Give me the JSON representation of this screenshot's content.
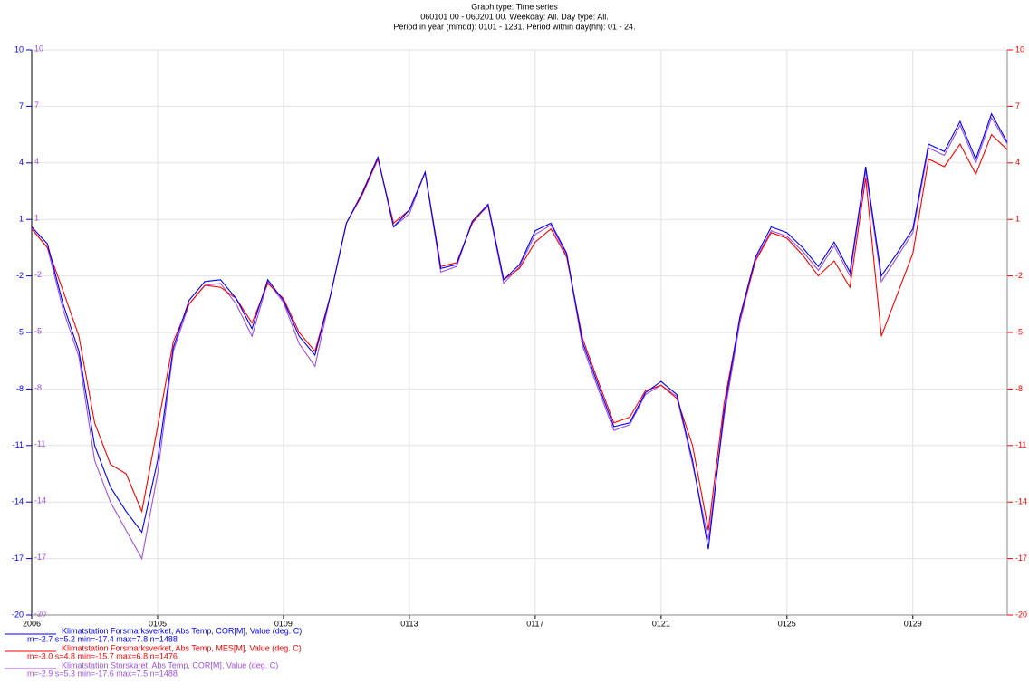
{
  "chart_data": {
    "type": "line",
    "title": "Graph type: Time series",
    "subtitle": "060101 00 - 060201 00. Weekday: All. Day type: All.",
    "subtitle2": "Period in year (mmdd): 0101 - 1231. Period within day(hh): 01 - 24.",
    "x": [
      0,
      0.5,
      1,
      1.5,
      2,
      2.5,
      3,
      3.5,
      4,
      4.5,
      5,
      5.5,
      6,
      6.5,
      7,
      7.5,
      8,
      8.5,
      9,
      9.5,
      10,
      10.5,
      11,
      11.5,
      12,
      12.5,
      13,
      13.5,
      14,
      14.5,
      15,
      15.5,
      16,
      16.5,
      17,
      17.5,
      18,
      18.5,
      19,
      19.5,
      20,
      20.5,
      21,
      21.5,
      22,
      22.5,
      23,
      23.5,
      24,
      24.5,
      25,
      25.5,
      26,
      26.5,
      27,
      27.5,
      28,
      28.5,
      29,
      29.5,
      30,
      30.5,
      31
    ],
    "xlim": [
      0,
      31
    ],
    "xticks": [
      {
        "value": 0,
        "label": "2006"
      },
      {
        "value": 4,
        "label": "0105"
      },
      {
        "value": 8,
        "label": "0109"
      },
      {
        "value": 12,
        "label": "0113"
      },
      {
        "value": 16,
        "label": "0117"
      },
      {
        "value": 20,
        "label": "0121"
      },
      {
        "value": 24,
        "label": "0125"
      },
      {
        "value": 28,
        "label": "0129"
      }
    ],
    "ylim": [
      -20,
      10
    ],
    "yticks": [
      10,
      7,
      4,
      1,
      -2,
      -5,
      -8,
      -11,
      -14,
      -17,
      -20
    ],
    "grid": true,
    "series": [
      {
        "name": "Klimatstation Forsmarksverket, Abs Temp, COR[M], Value (deg. C)",
        "stats": "m=-2.7 s=5.2 min=-17.4 max=7.8 n=1488",
        "color": "#0000ff",
        "values": [
          0.6,
          -0.3,
          -3.5,
          -6,
          -11,
          -13.2,
          -14.5,
          -15.6,
          -11.8,
          -5.8,
          -3.3,
          -2.3,
          -2.2,
          -3.2,
          -4.8,
          -2.2,
          -3.3,
          -5.2,
          -6.2,
          -3,
          0.8,
          2.4,
          4.3,
          0.6,
          1.5,
          3.5,
          -1.6,
          -1.4,
          0.9,
          1.8,
          -2.2,
          -1.4,
          0.4,
          0.8,
          -0.8,
          -5.5,
          -7.8,
          -10,
          -9.8,
          -8.2,
          -7.6,
          -8.3,
          -11.8,
          -16.5,
          -9.2,
          -4.2,
          -1,
          0.6,
          0.3,
          -0.5,
          -1.5,
          -0.2,
          -1.8,
          3.8,
          -2,
          -0.8,
          0.5,
          5,
          4.6,
          6.2,
          4.2,
          6.6,
          5.1
        ]
      },
      {
        "name": "Klimatstation Forsmarksverket, Abs Temp, MES[M], Value (deg. C)",
        "stats": "m=-3.0 s=4.8 min=-15.7 max=6.8 n=1476",
        "color": "#ff0000",
        "values": [
          0.5,
          -0.5,
          -2.8,
          -5.2,
          -9.8,
          -12,
          -12.5,
          -14.5,
          -10,
          -5.5,
          -3.5,
          -2.5,
          -2.6,
          -3.2,
          -4.5,
          -2.4,
          -3.2,
          -5,
          -6,
          -3,
          0.8,
          2.3,
          4.2,
          0.8,
          1.5,
          3.5,
          -1.5,
          -1.3,
          0.8,
          1.8,
          -2.2,
          -1.6,
          -0.2,
          0.5,
          -1,
          -5.3,
          -7.6,
          -9.8,
          -9.5,
          -8.1,
          -7.8,
          -8.5,
          -11,
          -15.5,
          -8.8,
          -4.3,
          -1.2,
          0.3,
          0,
          -0.9,
          -2,
          -1.2,
          -2.6,
          3.2,
          -5.2,
          -3,
          -0.8,
          4.2,
          3.8,
          5,
          3.4,
          5.5,
          4.7
        ]
      },
      {
        "name": "Klimatstation Storskaret, Abs Temp, COR[M], Value (deg. C)",
        "stats": "m=-2.9 s=5.3 min=-17.6 max=7.5 n=1488",
        "color": "#a050e0",
        "values": [
          0.5,
          -0.5,
          -3.8,
          -6.3,
          -11.8,
          -14,
          -15.5,
          -17,
          -12.5,
          -6,
          -3.5,
          -2.5,
          -2.4,
          -3.5,
          -5.2,
          -2.3,
          -3.4,
          -5.6,
          -6.8,
          -3,
          0.8,
          2.4,
          4.3,
          0.6,
          1.3,
          3.5,
          -1.8,
          -1.5,
          0.9,
          1.7,
          -2.4,
          -1.5,
          0.2,
          0.7,
          -0.9,
          -5.7,
          -8,
          -10.2,
          -9.9,
          -8.3,
          -7.8,
          -8.4,
          -12,
          -16,
          -9.5,
          -4.5,
          -1.1,
          0.4,
          0.1,
          -0.7,
          -1.7,
          -0.4,
          -2,
          3.6,
          -2.3,
          -1,
          0.3,
          4.8,
          4.4,
          6,
          4,
          6.4,
          5
        ]
      }
    ]
  }
}
